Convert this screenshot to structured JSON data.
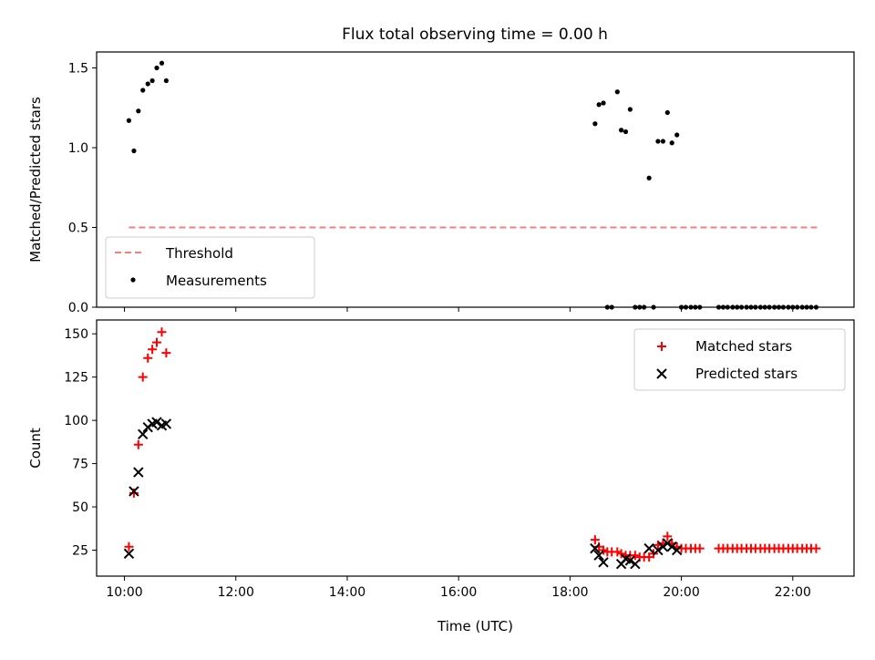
{
  "title": "Flux total observing time = 0.00 h",
  "colors": {
    "threshold": "#f08080",
    "measurements": "#000000",
    "matched": "#ff0000",
    "predicted": "#000000"
  },
  "chart_data": [
    {
      "type": "scatter",
      "panel": "top",
      "ylabel": "Matched/Predicted stars",
      "xlim": [
        9.5,
        23.1
      ],
      "ylim": [
        0,
        1.6
      ],
      "yticks": [
        0,
        0.5,
        1.0,
        1.5
      ],
      "ytick_labels": [
        "0.0",
        "0.5",
        "1.0",
        "1.5"
      ],
      "legend_placement": "lower-left",
      "threshold": {
        "name": "Threshold",
        "value": 0.5,
        "x": [
          10.08,
          22.45
        ]
      },
      "series": [
        {
          "name": "Measurements",
          "x": [
            10.08,
            10.17,
            10.25,
            10.33,
            10.42,
            10.5,
            10.58,
            10.67,
            10.75,
            18.45,
            18.52,
            18.6,
            18.67,
            18.75,
            18.85,
            18.92,
            19.0,
            19.08,
            19.17,
            19.25,
            19.33,
            19.42,
            19.5,
            19.58,
            19.67,
            19.75,
            19.83,
            19.92,
            20.0,
            20.08,
            20.17,
            20.25,
            20.33,
            20.67,
            20.75,
            20.83,
            20.92,
            21.0,
            21.08,
            21.17,
            21.25,
            21.33,
            21.42,
            21.5,
            21.58,
            21.67,
            21.75,
            21.83,
            21.92,
            22.0,
            22.08,
            22.17,
            22.25,
            22.33,
            22.42
          ],
          "y": [
            1.17,
            0.98,
            1.23,
            1.36,
            1.4,
            1.42,
            1.5,
            1.53,
            1.42,
            1.15,
            1.27,
            1.28,
            0,
            0,
            1.35,
            1.11,
            1.1,
            1.24,
            0,
            0,
            0,
            0.81,
            0,
            1.04,
            1.04,
            1.22,
            1.03,
            1.08,
            0,
            0,
            0,
            0,
            0,
            0,
            0,
            0,
            0,
            0,
            0,
            0,
            0,
            0,
            0,
            0,
            0,
            0,
            0,
            0,
            0,
            0,
            0,
            0,
            0,
            0,
            0
          ]
        }
      ]
    },
    {
      "type": "scatter",
      "panel": "bottom",
      "xlabel": "Time (UTC)",
      "ylabel": "Count",
      "xlim": [
        9.5,
        23.1
      ],
      "ylim": [
        10,
        158
      ],
      "yticks": [
        25,
        50,
        75,
        100,
        125,
        150
      ],
      "ytick_labels": [
        "25",
        "50",
        "75",
        "100",
        "125",
        "150"
      ],
      "xticks": [
        10,
        12,
        14,
        16,
        18,
        20,
        22
      ],
      "xtick_labels": [
        "10:00",
        "12:00",
        "14:00",
        "16:00",
        "18:00",
        "20:00",
        "22:00"
      ],
      "legend_placement": "top-right",
      "series": [
        {
          "name": "Matched stars",
          "marker": "plus",
          "x": [
            10.08,
            10.17,
            10.25,
            10.33,
            10.42,
            10.5,
            10.58,
            10.67,
            10.75,
            18.45,
            18.52,
            18.6,
            18.67,
            18.75,
            18.85,
            18.92,
            19.0,
            19.08,
            19.17,
            19.25,
            19.33,
            19.42,
            19.5,
            19.58,
            19.67,
            19.75,
            19.83,
            19.92,
            20.0,
            20.08,
            20.17,
            20.25,
            20.33,
            20.67,
            20.75,
            20.83,
            20.92,
            21.0,
            21.08,
            21.17,
            21.25,
            21.33,
            21.42,
            21.5,
            21.58,
            21.67,
            21.75,
            21.83,
            21.92,
            22.0,
            22.08,
            22.17,
            22.25,
            22.33,
            22.42
          ],
          "y": [
            27,
            58,
            86,
            125,
            136,
            141,
            145,
            151,
            139,
            31,
            27,
            25,
            24,
            24,
            24,
            23,
            22,
            22,
            22,
            21,
            21,
            21,
            23,
            28,
            29,
            33,
            29,
            27,
            26,
            26,
            26,
            26,
            26,
            26,
            26,
            26,
            26,
            26,
            26,
            26,
            26,
            26,
            26,
            26,
            26,
            26,
            26,
            26,
            26,
            26,
            26,
            26,
            26,
            26,
            26
          ]
        },
        {
          "name": "Predicted stars",
          "marker": "x",
          "x": [
            10.08,
            10.17,
            10.25,
            10.33,
            10.42,
            10.5,
            10.58,
            10.67,
            10.75,
            18.45,
            18.52,
            18.6,
            18.92,
            19.0,
            19.08,
            19.17,
            19.42,
            19.58,
            19.67,
            19.75,
            19.83,
            19.92
          ],
          "y": [
            23,
            59,
            70,
            92,
            96,
            98,
            99,
            97,
            98,
            26,
            22,
            18,
            17,
            20,
            19,
            17,
            26,
            25,
            27,
            29,
            27,
            25
          ]
        }
      ]
    }
  ]
}
